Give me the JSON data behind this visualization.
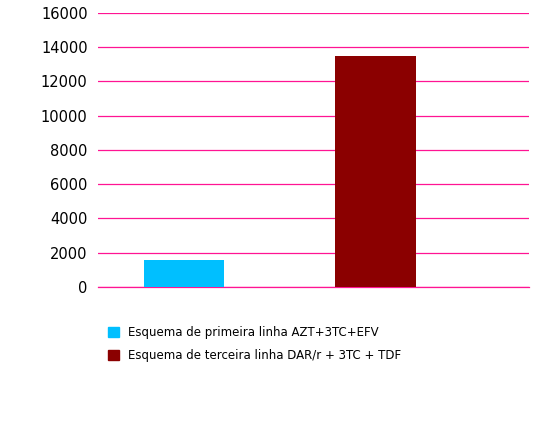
{
  "values": [
    1600,
    13500
  ],
  "bar_colors": [
    "#00BFFF",
    "#8B0000"
  ],
  "bar_positions": [
    1,
    2
  ],
  "bar_width": 0.42,
  "ylim": [
    0,
    16000
  ],
  "yticks": [
    0,
    2000,
    4000,
    6000,
    8000,
    10000,
    12000,
    14000,
    16000
  ],
  "grid_color": "#FF1493",
  "background_color": "#FFFFFF",
  "legend": [
    {
      "label": "Esquema de primeira linha AZT+3TC+EFV",
      "color": "#00BFFF"
    },
    {
      "label": "Esquema de terceira linha DAR/r + 3TC + TDF",
      "color": "#8B0000"
    }
  ],
  "legend_fontsize": 8.5,
  "tick_fontsize": 10.5,
  "xlim": [
    0.55,
    2.8
  ]
}
